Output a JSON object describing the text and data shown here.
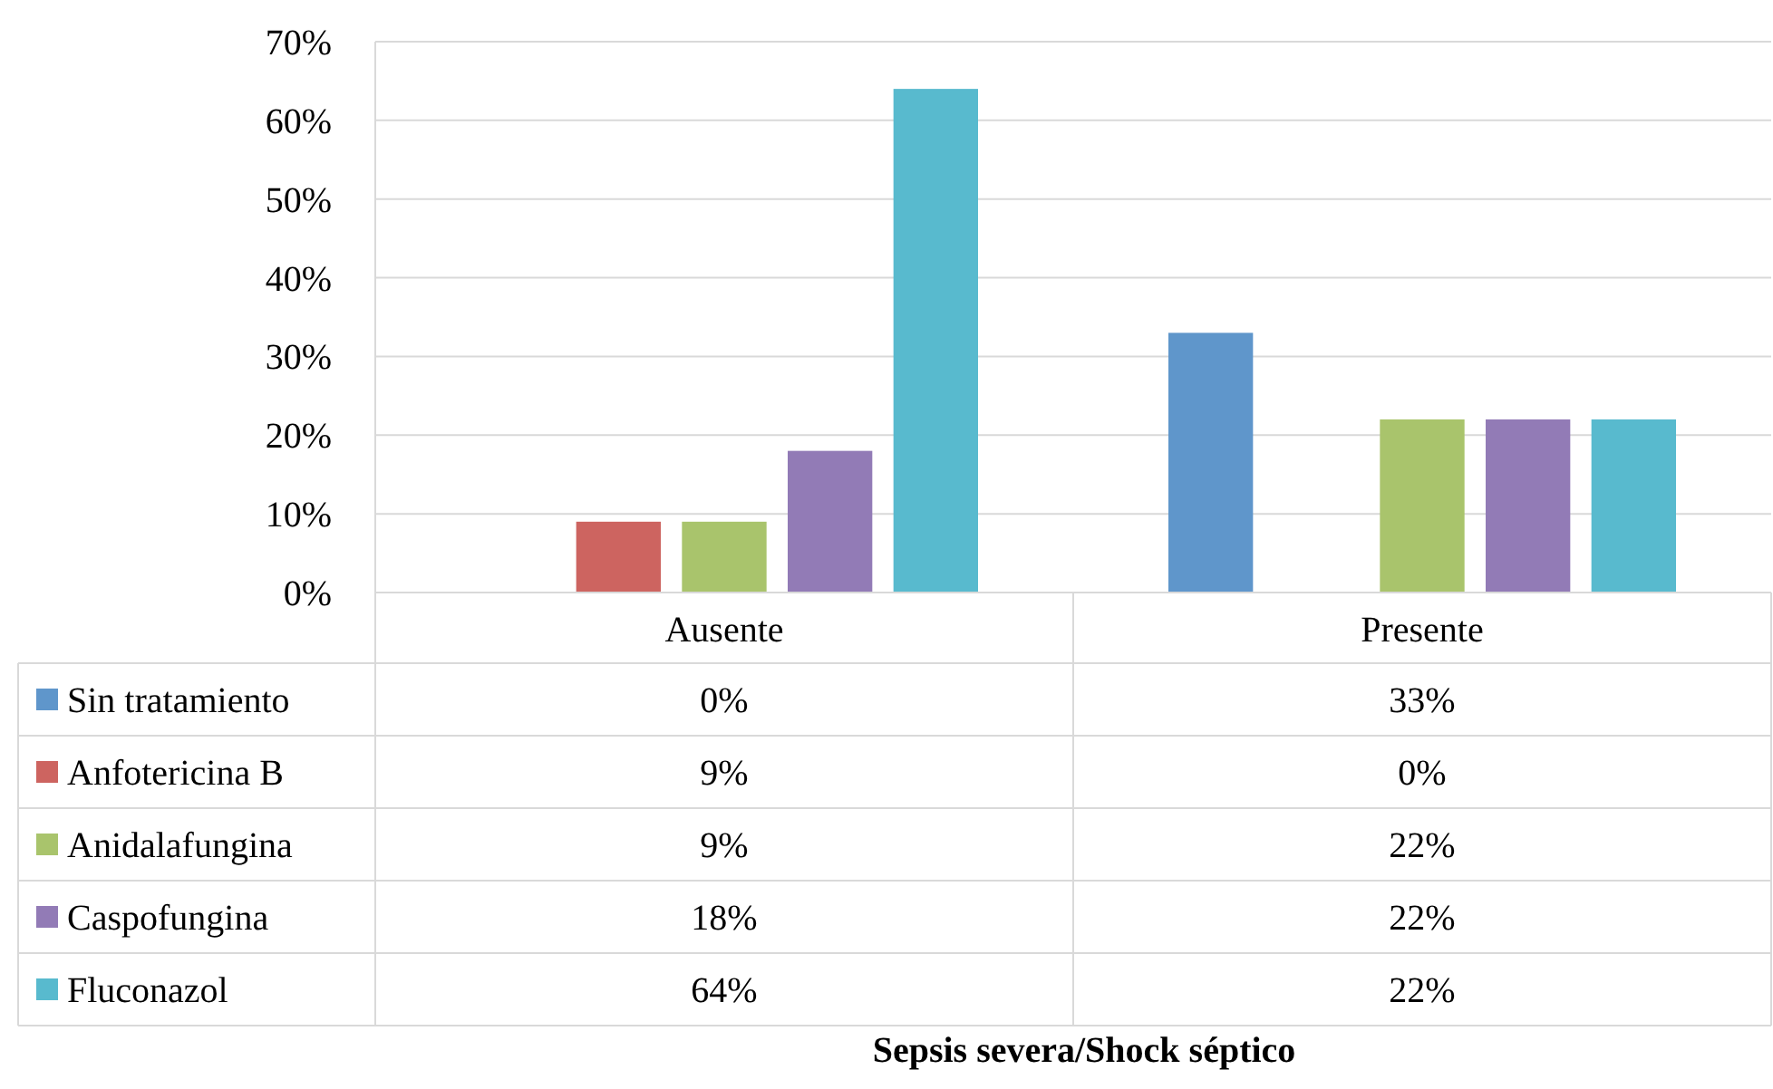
{
  "chart_data": {
    "type": "bar",
    "annotations": [
      "Sepsis severa/Shock séptico"
    ],
    "categories": [
      "Ausente",
      "Presente"
    ],
    "series": [
      {
        "name": "Sin tratamiento",
        "color": "#5f96cb",
        "values": [
          0,
          33
        ],
        "value_labels": [
          "0%",
          "33%"
        ]
      },
      {
        "name": "Anfotericina B",
        "color": "#cd6460",
        "values": [
          9,
          0
        ],
        "value_labels": [
          "9%",
          "0%"
        ]
      },
      {
        "name": "Anidalafungina",
        "color": "#a9c46c",
        "values": [
          9,
          22
        ],
        "value_labels": [
          "9%",
          "22%"
        ]
      },
      {
        "name": "Caspofungina",
        "color": "#927bb6",
        "values": [
          18,
          22
        ],
        "value_labels": [
          "18%",
          "22%"
        ]
      },
      {
        "name": "Fluconazol",
        "color": "#58bace",
        "values": [
          64,
          22
        ],
        "value_labels": [
          "64%",
          "22%"
        ]
      }
    ],
    "ylim": [
      0,
      70
    ],
    "yticks": [
      {
        "value": 0,
        "label": "0%"
      },
      {
        "value": 10,
        "label": "10%"
      },
      {
        "value": 20,
        "label": "20%"
      },
      {
        "value": 30,
        "label": "30%"
      },
      {
        "value": 40,
        "label": "40%"
      },
      {
        "value": 50,
        "label": "50%"
      },
      {
        "value": 60,
        "label": "60%"
      },
      {
        "value": 70,
        "label": "70%"
      }
    ],
    "grid": "y",
    "legend": "bottom"
  }
}
